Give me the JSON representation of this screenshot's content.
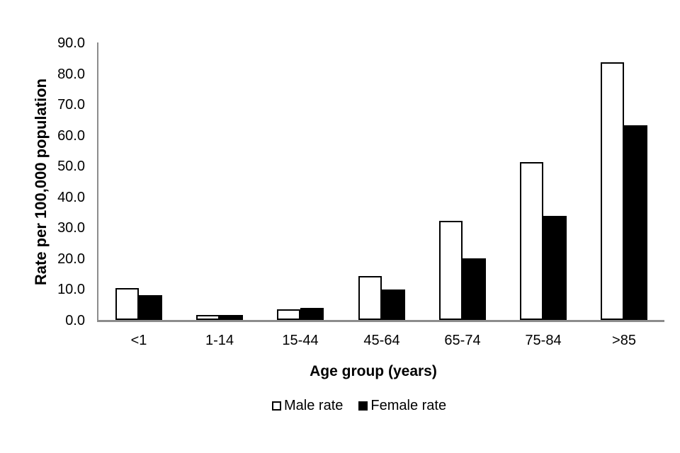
{
  "chart_data": {
    "type": "bar",
    "title": "",
    "xlabel": "Age group (years)",
    "ylabel": "Rate per 100,000 population",
    "categories": [
      "<1",
      "1-14",
      "15-44",
      "45-64",
      "65-74",
      "75-84",
      ">85"
    ],
    "series": [
      {
        "name": "Male rate",
        "values": [
          10.4,
          1.7,
          3.4,
          14.2,
          32.2,
          51.2,
          83.6
        ],
        "fill": "#ffffff",
        "border": "#000000"
      },
      {
        "name": "Female rate",
        "values": [
          8.0,
          1.6,
          3.9,
          9.9,
          20.0,
          33.8,
          63.2
        ],
        "fill": "#000000",
        "border": "#000000"
      }
    ],
    "ylim": [
      0,
      90
    ],
    "ytick_step": 10,
    "ytick_labels": [
      "0.0",
      "10.0",
      "20.0",
      "30.0",
      "40.0",
      "50.0",
      "60.0",
      "70.0",
      "80.0",
      "90.0"
    ],
    "grid": false,
    "legend_position": "bottom",
    "axis_color": "#8c8c8c",
    "text_color": "#000000"
  }
}
